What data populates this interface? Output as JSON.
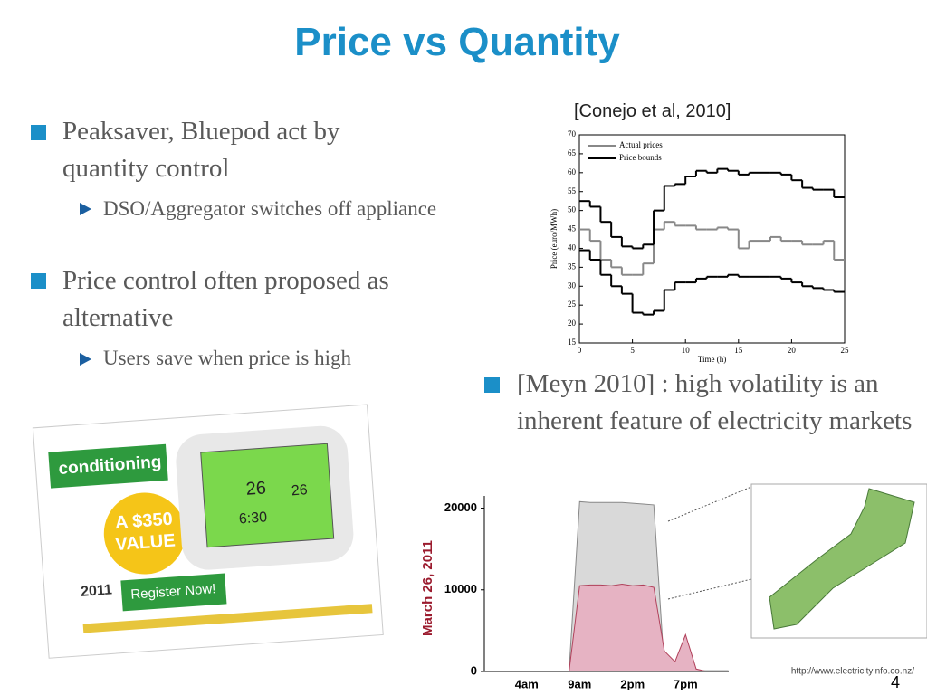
{
  "slide": {
    "title": "Price vs Quantity",
    "citation": "[Conejo et al, 2010]",
    "bullets": [
      {
        "text": "Peaksaver, Bluepod act by quantity control",
        "sub": [
          "DSO/Aggregator switches off appliance"
        ]
      },
      {
        "text": "Price control often proposed as alternative",
        "sub": [
          "Users save when price is high"
        ]
      },
      {
        "text": "[Meyn 2010] : high volatility is an inherent feature of electricity markets"
      }
    ],
    "page_number": 4
  },
  "promo_image": {
    "banner": "conditioning",
    "offer": [
      "A $350",
      "VALUE"
    ],
    "year": "2011",
    "button": "Register Now!",
    "display_left": "26",
    "display_right": "26",
    "display_time": "6:30"
  },
  "source_url": "http://www.electricityinfo.co.nz/",
  "chart_data": [
    {
      "type": "line",
      "step": true,
      "xlabel": "Time (h)",
      "ylabel": "Price (euro/MWh)",
      "x": [
        0,
        1,
        2,
        3,
        4,
        5,
        6,
        7,
        8,
        9,
        10,
        11,
        12,
        13,
        14,
        15,
        16,
        17,
        18,
        19,
        20,
        21,
        22,
        23,
        24
      ],
      "xlim": [
        0,
        25
      ],
      "ylim": [
        15,
        70
      ],
      "xticks": [
        0,
        5,
        10,
        15,
        20,
        25
      ],
      "yticks": [
        15,
        20,
        25,
        30,
        35,
        40,
        45,
        50,
        55,
        60,
        65,
        70
      ],
      "legend": "upper left",
      "series": [
        {
          "name": "Actual prices",
          "color": "#888888",
          "values": [
            45,
            42,
            37,
            35,
            33,
            33,
            36,
            45,
            47,
            46,
            46,
            45,
            45,
            45.5,
            45,
            40,
            42,
            42,
            43,
            42,
            42,
            41,
            41,
            42,
            37
          ]
        },
        {
          "name": "Price bounds",
          "color": "#000000",
          "values": [
            52.5,
            51,
            47,
            43,
            40.5,
            40,
            41,
            50,
            56.5,
            57,
            59,
            60.5,
            60,
            61,
            60.5,
            59.5,
            60,
            60,
            60,
            59.5,
            58,
            56,
            55.5,
            55.5,
            53.5
          ]
        },
        {
          "color": "#000000",
          "values": [
            39.5,
            37,
            33,
            30,
            28,
            23,
            22.5,
            23.5,
            29,
            31,
            31,
            32,
            32.5,
            32.5,
            33,
            32.5,
            32.5,
            32.5,
            32.5,
            32,
            31,
            30,
            29.5,
            29,
            28.5
          ]
        }
      ]
    },
    {
      "type": "area",
      "ylabel": "March 26, 2011",
      "categories": [
        null,
        null,
        null,
        null,
        "4am",
        null,
        null,
        null,
        null,
        "9am",
        null,
        null,
        null,
        null,
        "2pm",
        null,
        null,
        null,
        null,
        "7pm",
        null,
        null,
        null,
        null
      ],
      "ylim": [
        0,
        21500
      ],
      "yticks": [
        0,
        10000,
        20000
      ],
      "series": [
        {
          "color": "#d9d9d9",
          "values": [
            50,
            50,
            50,
            50,
            50,
            50,
            50,
            50,
            50,
            20800,
            20700,
            20700,
            20700,
            20700,
            20600,
            20500,
            20400,
            300,
            200,
            150,
            100,
            100,
            100,
            100
          ]
        },
        {
          "color": "#e6b3c3",
          "values": [
            0,
            0,
            0,
            0,
            0,
            0,
            0,
            0,
            0,
            10500,
            10600,
            10600,
            10500,
            10700,
            10500,
            10600,
            10300,
            2500,
            1200,
            4500,
            300,
            0,
            0,
            0
          ]
        }
      ]
    }
  ]
}
